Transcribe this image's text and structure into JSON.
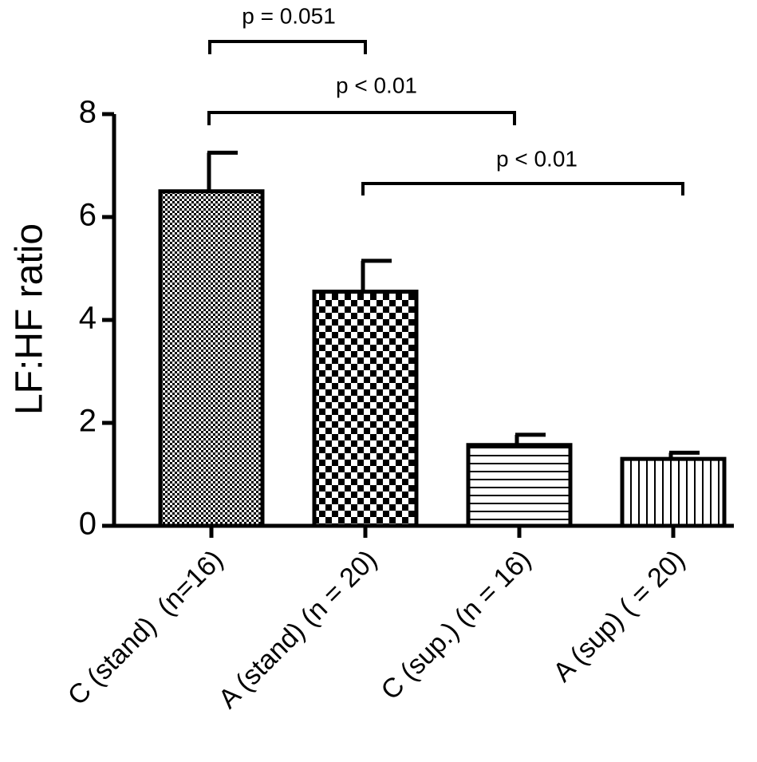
{
  "chart_data": {
    "type": "bar",
    "y_label": "LF:HF ratio",
    "categories": [
      "C (stand)  (n=16)",
      "A (stand) (n = 20)",
      "C (sup.) (n = 16)",
      "A (sup) ( = 20)"
    ],
    "values": [
      6.5,
      4.55,
      1.57,
      1.3
    ],
    "errors": [
      0.75,
      0.6,
      0.2,
      0.12
    ],
    "color": "#000000",
    "ylim": [
      0,
      8
    ],
    "yticks": [
      0,
      2,
      4,
      6,
      8
    ],
    "annotations": [
      "p = 0.051",
      "p < 0.01",
      "p < 0.01"
    ]
  }
}
